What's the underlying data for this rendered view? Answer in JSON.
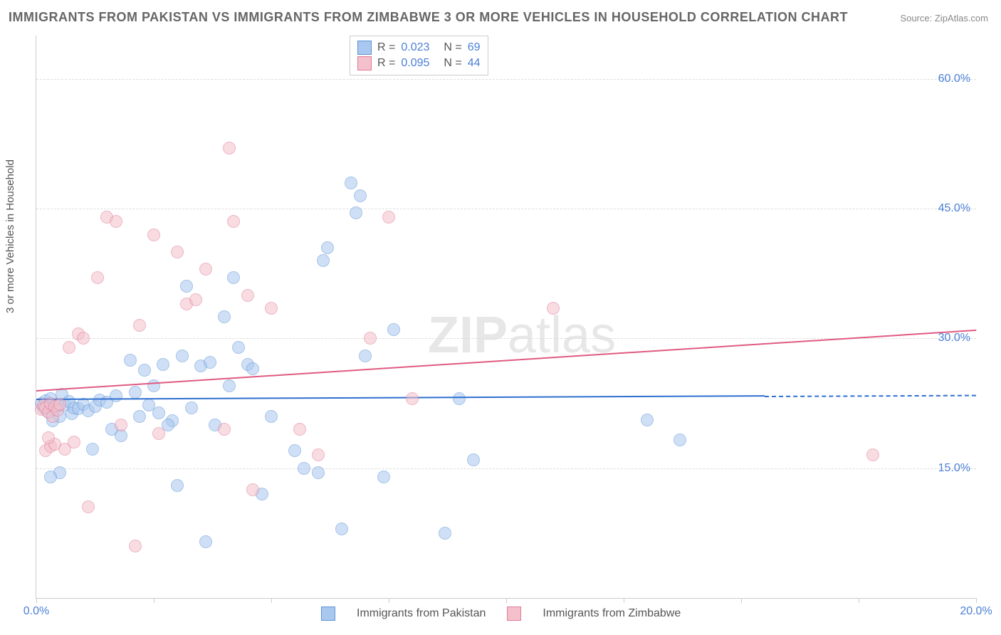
{
  "title": "IMMIGRANTS FROM PAKISTAN VS IMMIGRANTS FROM ZIMBABWE 3 OR MORE VEHICLES IN HOUSEHOLD CORRELATION CHART",
  "source_label": "Source:",
  "source_name": "ZipAtlas.com",
  "ylabel": "3 or more Vehicles in Household",
  "watermark_bold": "ZIP",
  "watermark_rest": "atlas",
  "chart": {
    "type": "scatter",
    "xlim": [
      0,
      20
    ],
    "ylim": [
      0,
      65
    ],
    "ytick_values": [
      15,
      30,
      45,
      60
    ],
    "ytick_labels": [
      "15.0%",
      "30.0%",
      "45.0%",
      "60.0%"
    ],
    "xtick_minor": [
      0,
      2.5,
      5,
      7.5,
      10,
      12.5,
      15,
      17.5,
      20
    ],
    "xtick_labels": [
      {
        "v": 0,
        "t": "0.0%"
      },
      {
        "v": 20,
        "t": "20.0%"
      }
    ],
    "background_color": "#ffffff",
    "grid_color": "#dddddd",
    "axis_color": "#cccccc",
    "point_radius": 8,
    "point_opacity": 0.55,
    "series": [
      {
        "name": "Immigrants from Pakistan",
        "color_fill": "#a9c8ef",
        "color_stroke": "#5f93d6",
        "R": "0.023",
        "N": "69",
        "trend": {
          "x1": 0,
          "y1": 23.0,
          "x2": 15.5,
          "y2": 23.4,
          "color": "#2f6fd0",
          "dash_to_x": 20
        },
        "points": [
          [
            0.1,
            22.5
          ],
          [
            0.15,
            22
          ],
          [
            0.2,
            22.8
          ],
          [
            0.25,
            21.5
          ],
          [
            0.3,
            23
          ],
          [
            0.35,
            20.5
          ],
          [
            0.4,
            21.8
          ],
          [
            0.45,
            22.2
          ],
          [
            0.5,
            21
          ],
          [
            0.55,
            23.5
          ],
          [
            0.6,
            22.3
          ],
          [
            0.7,
            22.7
          ],
          [
            0.75,
            21.3
          ],
          [
            0.8,
            22
          ],
          [
            0.9,
            21.9
          ],
          [
            1.0,
            22.4
          ],
          [
            1.1,
            21.6
          ],
          [
            1.2,
            17.2
          ],
          [
            1.25,
            22.1
          ],
          [
            1.35,
            22.9
          ],
          [
            0.5,
            14.5
          ],
          [
            1.6,
            19.5
          ],
          [
            1.8,
            18.8
          ],
          [
            2.0,
            27.5
          ],
          [
            2.2,
            21.0
          ],
          [
            2.3,
            26.3
          ],
          [
            2.5,
            24.5
          ],
          [
            2.7,
            27.0
          ],
          [
            2.9,
            20.5
          ],
          [
            3.0,
            13.0
          ],
          [
            3.1,
            28.0
          ],
          [
            3.2,
            36.0
          ],
          [
            3.5,
            26.8
          ],
          [
            3.6,
            6.5
          ],
          [
            3.7,
            27.2
          ],
          [
            4.0,
            32.5
          ],
          [
            4.1,
            24.5
          ],
          [
            4.2,
            37.0
          ],
          [
            4.5,
            27.0
          ],
          [
            4.6,
            26.5
          ],
          [
            4.8,
            12.0
          ],
          [
            5.0,
            21.0
          ],
          [
            5.5,
            17.0
          ],
          [
            5.7,
            15.0
          ],
          [
            6.0,
            14.5
          ],
          [
            6.1,
            39.0
          ],
          [
            6.2,
            40.5
          ],
          [
            6.5,
            8.0
          ],
          [
            6.7,
            48.0
          ],
          [
            6.8,
            44.5
          ],
          [
            6.9,
            46.5
          ],
          [
            7.0,
            28.0
          ],
          [
            7.4,
            14.0
          ],
          [
            7.6,
            31.0
          ],
          [
            8.7,
            7.5
          ],
          [
            9.0,
            23.0
          ],
          [
            9.3,
            16.0
          ],
          [
            13.0,
            20.6
          ],
          [
            13.7,
            18.3
          ],
          [
            0.3,
            14.0
          ],
          [
            1.5,
            22.6
          ],
          [
            1.7,
            23.4
          ],
          [
            2.1,
            23.8
          ],
          [
            2.4,
            22.3
          ],
          [
            2.6,
            21.4
          ],
          [
            2.8,
            20.0
          ],
          [
            3.3,
            22.0
          ],
          [
            3.8,
            20.0
          ],
          [
            4.3,
            29.0
          ]
        ]
      },
      {
        "name": "Immigrants from Zimbabwe",
        "color_fill": "#f4c0cb",
        "color_stroke": "#e17c97",
        "R": "0.095",
        "N": "44",
        "trend": {
          "x1": 0,
          "y1": 24.0,
          "x2": 20,
          "y2": 31.0,
          "color": "#e05a82",
          "dash_to_x": null
        },
        "points": [
          [
            0.1,
            21.8
          ],
          [
            0.15,
            22.3
          ],
          [
            0.2,
            22.0
          ],
          [
            0.25,
            21.5
          ],
          [
            0.3,
            22.5
          ],
          [
            0.35,
            21.0
          ],
          [
            0.4,
            22.1
          ],
          [
            0.45,
            21.7
          ],
          [
            0.5,
            22.4
          ],
          [
            0.2,
            17.0
          ],
          [
            0.3,
            17.5
          ],
          [
            0.4,
            17.8
          ],
          [
            0.6,
            17.2
          ],
          [
            0.8,
            18.0
          ],
          [
            0.9,
            30.5
          ],
          [
            1.0,
            30.0
          ],
          [
            1.1,
            10.5
          ],
          [
            1.3,
            37.0
          ],
          [
            1.5,
            44.0
          ],
          [
            1.7,
            43.5
          ],
          [
            1.8,
            20.0
          ],
          [
            2.1,
            6.0
          ],
          [
            2.2,
            31.5
          ],
          [
            2.5,
            42.0
          ],
          [
            2.6,
            19.0
          ],
          [
            3.0,
            40.0
          ],
          [
            3.2,
            34.0
          ],
          [
            3.4,
            34.5
          ],
          [
            3.6,
            38.0
          ],
          [
            4.0,
            19.5
          ],
          [
            4.1,
            52.0
          ],
          [
            4.2,
            43.5
          ],
          [
            4.5,
            35.0
          ],
          [
            4.6,
            12.5
          ],
          [
            5.0,
            33.5
          ],
          [
            5.6,
            19.5
          ],
          [
            6.0,
            16.5
          ],
          [
            7.1,
            30.0
          ],
          [
            7.5,
            44.0
          ],
          [
            8.0,
            23.0
          ],
          [
            11.0,
            33.5
          ],
          [
            17.8,
            16.5
          ],
          [
            0.25,
            18.5
          ],
          [
            0.7,
            29.0
          ]
        ]
      }
    ]
  },
  "legend_bottom": [
    {
      "label": "Immigrants from Pakistan",
      "fill": "#a9c8ef",
      "stroke": "#5f93d6"
    },
    {
      "label": "Immigrants from Zimbabwe",
      "fill": "#f4c0cb",
      "stroke": "#e17c97"
    }
  ]
}
